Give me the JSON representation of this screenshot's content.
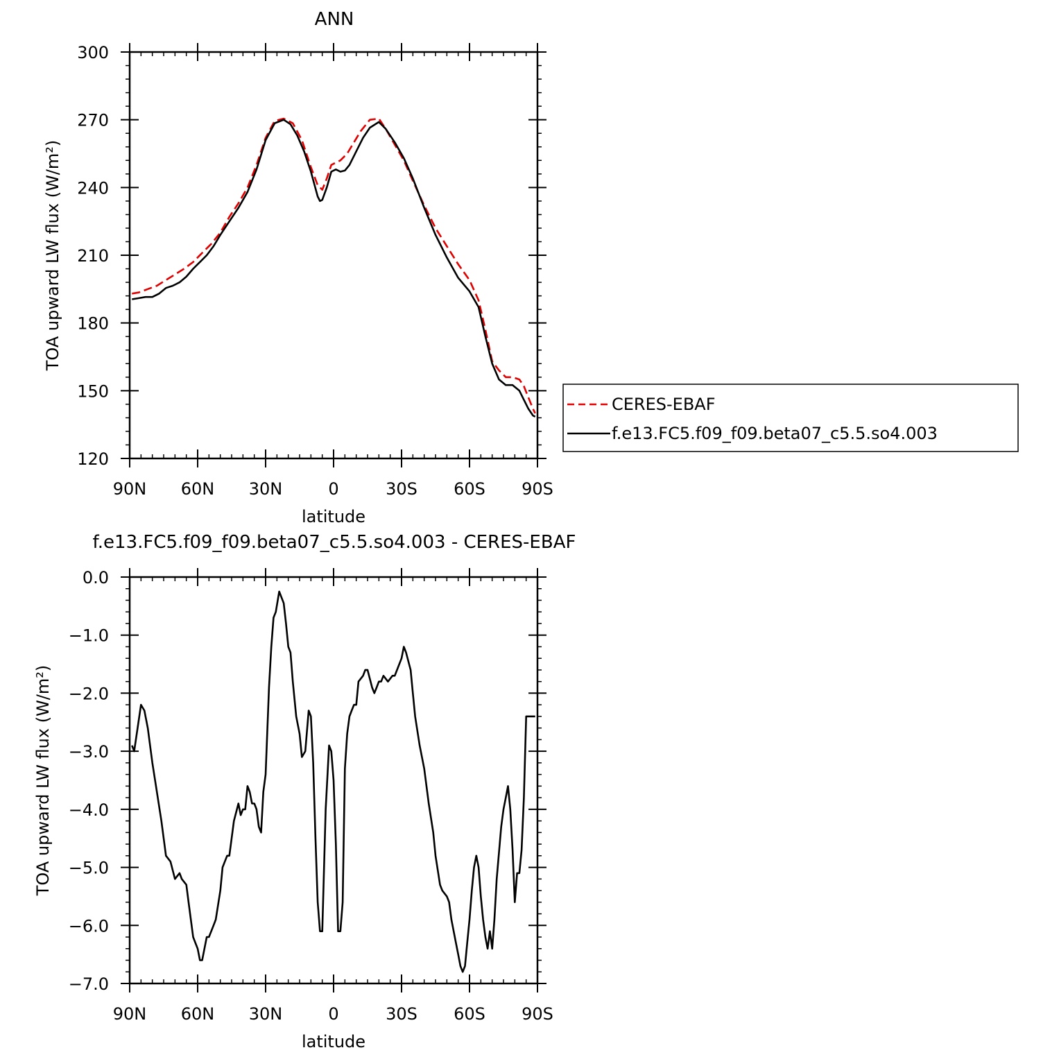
{
  "chart_data": [
    {
      "type": "line",
      "title": "ANN",
      "xlabel": "latitude",
      "ylabel": "TOA upward LW flux (W/m²)",
      "xlim": [
        90,
        -90
      ],
      "ylim": [
        120,
        300
      ],
      "yticks": [
        "120",
        "150",
        "180",
        "210",
        "240",
        "270",
        "300"
      ],
      "xticks": [
        "90N",
        "60N",
        "30N",
        "0",
        "30S",
        "60S",
        "90S"
      ],
      "legend_position": "right-middle, outside",
      "series": [
        {
          "name": "CERES-EBAF",
          "color": "#e00000",
          "style": "dashed",
          "x": [
            89,
            86,
            82,
            78,
            74,
            70,
            66,
            62,
            58,
            54,
            50,
            46,
            42,
            38,
            34,
            30,
            26,
            22,
            18,
            14,
            10,
            7,
            5,
            3,
            1,
            -1,
            -3,
            -6,
            -9,
            -12,
            -16,
            -20,
            -23,
            -27,
            -31,
            -35,
            -40,
            -45,
            -50,
            -55,
            -60,
            -64,
            -67,
            -70,
            -73,
            -76,
            -79,
            -82,
            -84,
            -86,
            -88,
            -89
          ],
          "values": [
            193,
            193.5,
            195,
            196.5,
            199,
            201.5,
            204,
            207,
            211,
            215,
            220,
            227,
            233,
            240,
            250,
            262,
            269.5,
            270.5,
            268.5,
            261,
            249,
            241,
            239,
            244,
            250,
            251,
            252,
            255,
            260,
            265,
            270,
            270.5,
            266,
            259,
            252,
            243,
            232,
            222,
            214,
            206,
            199,
            190,
            177,
            163,
            159,
            156,
            156,
            155,
            152,
            147,
            142,
            140
          ]
        },
        {
          "name": "f.e13.FC5.f09_f09.beta07_c5.5.so4.003",
          "color": "#000000",
          "style": "solid",
          "x": [
            89,
            86,
            83,
            80,
            77,
            74,
            71,
            68,
            65,
            62,
            59,
            56,
            53,
            50,
            46,
            42,
            38,
            34,
            30,
            26,
            22,
            19,
            16,
            13,
            10,
            7,
            6,
            5,
            3,
            1,
            -1,
            -3,
            -5,
            -7,
            -10,
            -13,
            -16,
            -20,
            -23,
            -27,
            -31,
            -35,
            -40,
            -45,
            -50,
            -55,
            -60,
            -64,
            -67,
            -70,
            -73,
            -76,
            -79,
            -82,
            -84,
            -86,
            -88,
            -89
          ],
          "values": [
            190.5,
            191,
            191.5,
            191.5,
            193,
            195.5,
            196.5,
            198,
            200.5,
            204,
            207,
            210,
            214,
            219,
            225,
            231,
            238,
            248,
            261,
            268.5,
            270,
            268,
            263,
            256,
            247,
            236,
            234,
            234.5,
            240,
            247,
            248,
            247,
            247.5,
            250,
            256,
            262,
            266.5,
            269,
            266,
            260,
            253,
            244,
            231,
            219,
            209,
            200,
            194,
            187,
            174,
            162,
            155,
            152.5,
            152.5,
            150,
            146,
            142,
            139,
            138.5
          ]
        }
      ]
    },
    {
      "type": "line",
      "title": "f.e13.FC5.f09_f09.beta07_c5.5.so4.003 - CERES-EBAF",
      "xlabel": "latitude",
      "ylabel": "TOA upward LW flux (W/m²)",
      "xlim": [
        90,
        -90
      ],
      "ylim": [
        -7.0,
        0.0
      ],
      "yticks": [
        "−7.0",
        "−6.0",
        "−5.0",
        "−4.0",
        "−3.0",
        "−2.0",
        "−1.0",
        "0.0"
      ],
      "xticks": [
        "90N",
        "60N",
        "30N",
        "0",
        "30S",
        "60S",
        "90S"
      ],
      "series": [
        {
          "color": "#000000",
          "style": "solid",
          "x": [
            89,
            88,
            86.5,
            85,
            83.5,
            82,
            80,
            78,
            76,
            75,
            74,
            72,
            70,
            68,
            67,
            65,
            64,
            63,
            62,
            61,
            60,
            59,
            58,
            56,
            55,
            53,
            52,
            50,
            49,
            48,
            47,
            46,
            45,
            44,
            42,
            41,
            40,
            39,
            38,
            37,
            36,
            35,
            34,
            33,
            32,
            31,
            30,
            28.5,
            27.5,
            26.5,
            25.5,
            24,
            22,
            21,
            20,
            19,
            18,
            16.5,
            15,
            14,
            12.5,
            11,
            10,
            9,
            8,
            7,
            6,
            5,
            3.5,
            2,
            1,
            0,
            -1,
            -2,
            -3,
            -4,
            -5,
            -6,
            -7,
            -8,
            -9,
            -10,
            -11,
            -13,
            -14,
            -15,
            -17,
            -18,
            -19,
            -20,
            -21,
            -22,
            -24,
            -26,
            -27,
            -28,
            -30,
            -31,
            -32,
            -34,
            -35,
            -36,
            -38,
            -40,
            -42,
            -44,
            -45,
            -47,
            -48,
            -50,
            -51,
            -52,
            -54,
            -55,
            -56,
            -57,
            -58,
            -59,
            -60,
            -61,
            -62,
            -63,
            -64,
            -65,
            -66,
            -67,
            -68,
            -69,
            -70,
            -71,
            -72,
            -74,
            -75,
            -76,
            -77,
            -78,
            -79,
            -80,
            -81,
            -82,
            -83,
            -84,
            -85,
            -86,
            -87,
            -88,
            -89
          ],
          "values": [
            -2.9,
            -3.0,
            -2.6,
            -2.2,
            -2.3,
            -2.6,
            -3.2,
            -3.7,
            -4.2,
            -4.5,
            -4.8,
            -4.9,
            -5.2,
            -5.1,
            -5.2,
            -5.3,
            -5.6,
            -5.9,
            -6.2,
            -6.3,
            -6.4,
            -6.6,
            -6.6,
            -6.2,
            -6.2,
            -6.0,
            -5.9,
            -5.4,
            -5.0,
            -4.9,
            -4.8,
            -4.8,
            -4.5,
            -4.2,
            -3.9,
            -4.1,
            -4.0,
            -4.0,
            -3.6,
            -3.7,
            -3.9,
            -3.9,
            -4.0,
            -4.3,
            -4.4,
            -3.7,
            -3.4,
            -1.9,
            -1.2,
            -0.7,
            -0.6,
            -0.25,
            -0.45,
            -0.8,
            -1.2,
            -1.3,
            -1.8,
            -2.4,
            -2.7,
            -3.1,
            -3.0,
            -2.3,
            -2.4,
            -3.2,
            -4.5,
            -5.6,
            -6.1,
            -6.1,
            -4.0,
            -2.9,
            -3.0,
            -3.5,
            -4.6,
            -6.1,
            -6.1,
            -5.6,
            -3.3,
            -2.7,
            -2.4,
            -2.3,
            -2.2,
            -2.2,
            -1.8,
            -1.7,
            -1.6,
            -1.6,
            -1.9,
            -2.0,
            -1.9,
            -1.8,
            -1.8,
            -1.7,
            -1.8,
            -1.7,
            -1.7,
            -1.6,
            -1.4,
            -1.2,
            -1.3,
            -1.6,
            -2.0,
            -2.4,
            -2.9,
            -3.3,
            -3.9,
            -4.4,
            -4.8,
            -5.3,
            -5.4,
            -5.5,
            -5.6,
            -5.9,
            -6.3,
            -6.5,
            -6.7,
            -6.8,
            -6.7,
            -6.3,
            -5.9,
            -5.4,
            -5.0,
            -4.8,
            -5.0,
            -5.5,
            -5.9,
            -6.2,
            -6.4,
            -6.1,
            -6.4,
            -5.9,
            -5.2,
            -4.3,
            -4.0,
            -3.8,
            -3.6,
            -4.0,
            -4.7,
            -5.6,
            -5.1,
            -5.1,
            -4.7,
            -3.8,
            -2.4,
            -2.4,
            -2.4,
            -2.4,
            -2.4
          ]
        }
      ]
    }
  ]
}
